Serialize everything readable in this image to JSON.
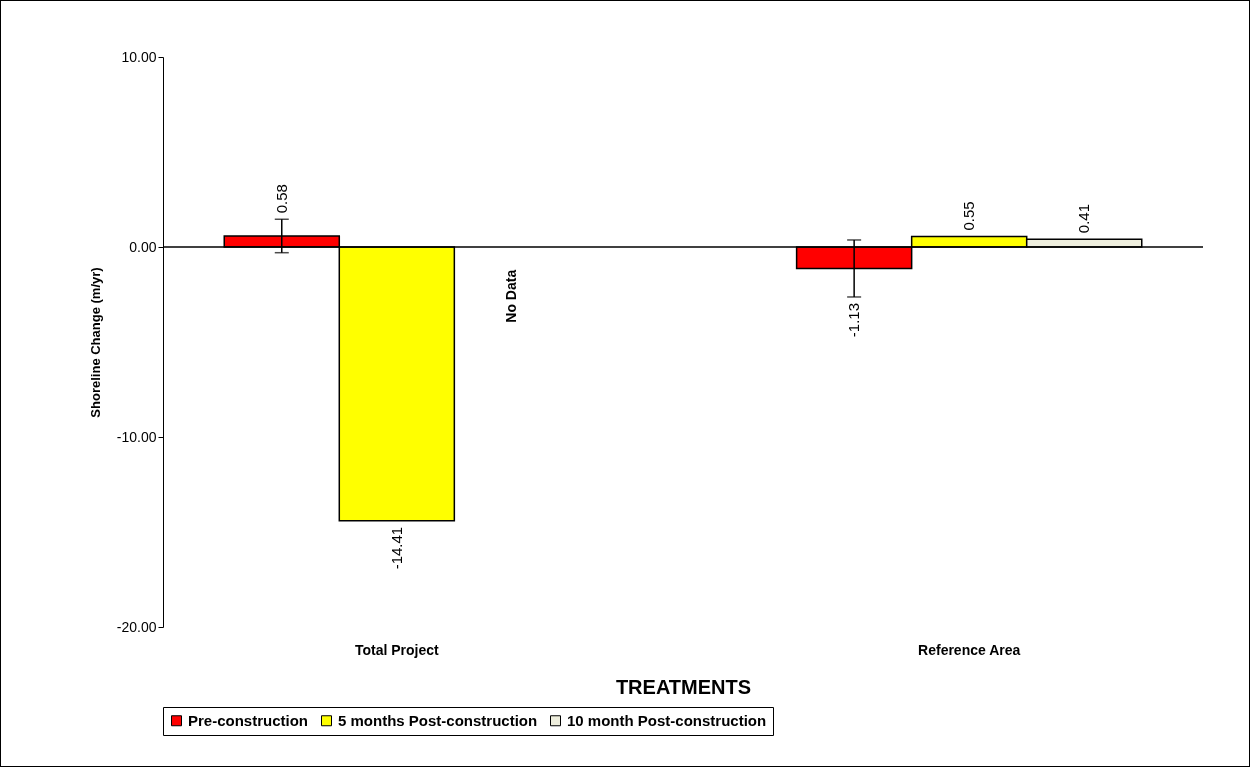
{
  "chart_data": {
    "type": "bar",
    "xlabel": "TREATMENTS",
    "ylabel": "Shoreline Change (m/yr)",
    "categories": [
      "Total Project",
      "Reference Area"
    ],
    "series": [
      {
        "name": "Pre-construction",
        "color": "#ff0000",
        "values": [
          0.58,
          -1.13
        ],
        "errors": [
          0.88,
          1.5
        ]
      },
      {
        "name": "5 months Post-construction",
        "color": "#ffff00",
        "values": [
          -14.41,
          0.55
        ]
      },
      {
        "name": "10 month Post-construction",
        "color": "#eeeedd",
        "values": [
          null,
          0.41
        ]
      }
    ],
    "ylim": [
      -20,
      10
    ],
    "yticks": [
      {
        "value": -20,
        "label": "-20.00"
      },
      {
        "value": -10,
        "label": "-10.00"
      },
      {
        "value": 0,
        "label": "0.00"
      },
      {
        "value": 10,
        "label": "10.00"
      }
    ],
    "annotations": [
      "No Data"
    ],
    "ref_lines": [
      {
        "axis": "y",
        "value": 0
      }
    ],
    "data_labels": true,
    "grid": false,
    "legend": "bottom"
  }
}
